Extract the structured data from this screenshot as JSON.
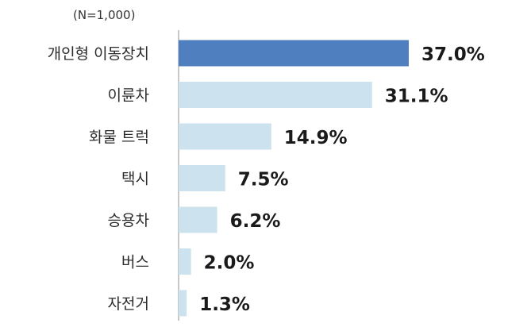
{
  "chart_data": {
    "type": "bar",
    "orientation": "horizontal",
    "note": "(N=1,000)",
    "categories": [
      "개인형 이동장치",
      "이륜차",
      "화물 트럭",
      "택시",
      "승용차",
      "버스",
      "자전거"
    ],
    "values": [
      37.0,
      31.1,
      14.9,
      7.5,
      6.2,
      2.0,
      1.3
    ],
    "value_labels": [
      "37.0%",
      "31.1%",
      "14.9%",
      "7.5%",
      "6.2%",
      "2.0%",
      "1.3%"
    ],
    "xlim": [
      0,
      37.0
    ],
    "grid": false,
    "colors": {
      "highlight": "#4f7fbf",
      "default": "#cce2ee",
      "axis": "#c8c8c8"
    }
  }
}
